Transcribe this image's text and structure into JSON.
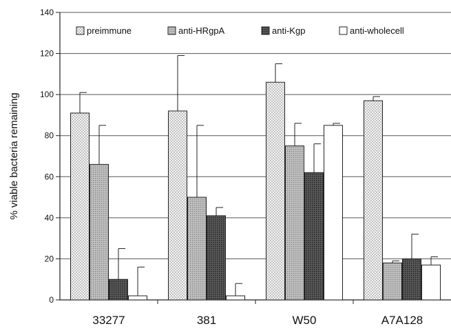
{
  "chart_data": {
    "type": "bar",
    "title": "",
    "xlabel": "",
    "ylabel": "% viable bacteria remaining",
    "ylim": [
      0,
      140
    ],
    "yticks": [
      0,
      20,
      40,
      60,
      80,
      100,
      120,
      140
    ],
    "grid": "horizontal",
    "legend_position": "top",
    "categories": [
      "33277",
      "381",
      "W50",
      "A7A128"
    ],
    "series": [
      {
        "name": "preimmune",
        "values": [
          91,
          92,
          106,
          97
        ],
        "errors": [
          10,
          27,
          9,
          2
        ],
        "fill": "dots",
        "color": "#f3f3f3"
      },
      {
        "name": "anti-HRgpA",
        "values": [
          66,
          50,
          75,
          18
        ],
        "errors": [
          19,
          35,
          11,
          1
        ],
        "fill": "light-gray",
        "color": "#b4b4b4"
      },
      {
        "name": "anti-Kgp",
        "values": [
          10,
          41,
          62,
          20
        ],
        "errors": [
          15,
          4,
          14,
          12
        ],
        "fill": "dark-gray",
        "color": "#4a4a4a"
      },
      {
        "name": "anti-wholecell",
        "values": [
          2,
          2,
          85,
          17
        ],
        "errors": [
          14,
          6,
          1,
          4
        ],
        "fill": "white",
        "color": "#ffffff"
      }
    ]
  }
}
